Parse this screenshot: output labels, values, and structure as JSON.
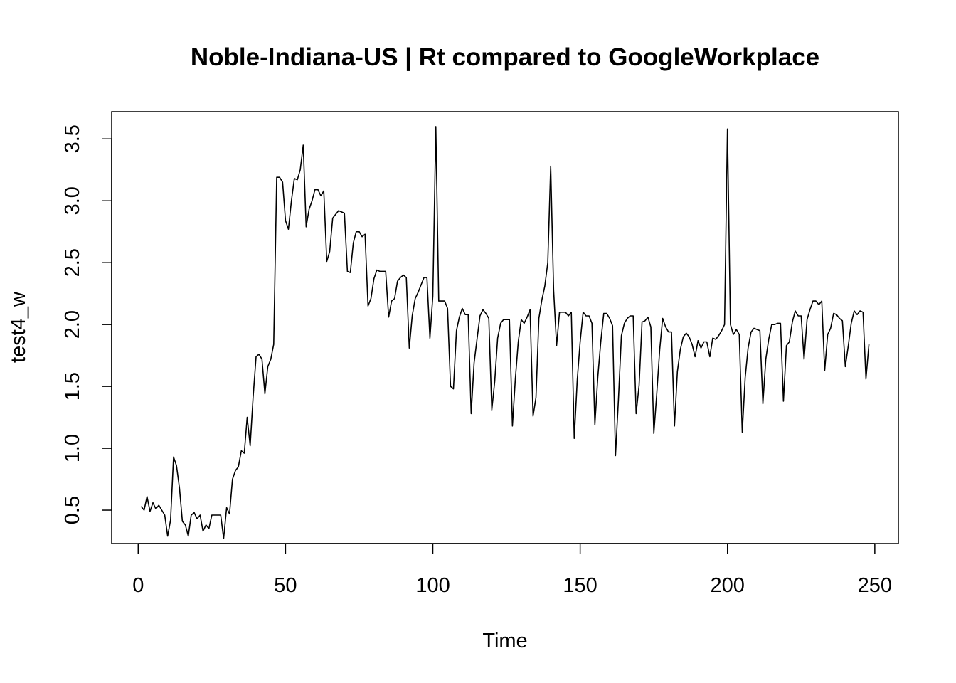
{
  "chart_data": {
    "type": "line",
    "title": "Noble-Indiana-US | Rt compared to GoogleWorkplace",
    "xlabel": "Time",
    "ylabel": "test4_w",
    "xlim": [
      -9,
      258
    ],
    "ylim": [
      0.23,
      3.72
    ],
    "xticks": [
      0,
      50,
      100,
      150,
      200,
      250
    ],
    "yticks": [
      0.5,
      1.0,
      1.5,
      2.0,
      2.5,
      3.0,
      3.5
    ],
    "xtick_labels": [
      "0",
      "50",
      "100",
      "150",
      "200",
      "250"
    ],
    "ytick_labels": [
      "0.5",
      "1.0",
      "1.5",
      "2.0",
      "2.5",
      "3.0",
      "3.5"
    ],
    "grid": false,
    "legend": "none",
    "line_color": "#000000",
    "series": [
      {
        "x": [
          1,
          2,
          3,
          4,
          5,
          6,
          7,
          8,
          9,
          10,
          11,
          12,
          13,
          14,
          15,
          16,
          17,
          18,
          19,
          20,
          21,
          22,
          23,
          24,
          25,
          26,
          27,
          28,
          29,
          30,
          31,
          32,
          33,
          34,
          35,
          36,
          37,
          38,
          39,
          40,
          41,
          42,
          43,
          44,
          45,
          46,
          47,
          48,
          49,
          50,
          51,
          52,
          53,
          54,
          55,
          56,
          57,
          58,
          59,
          60,
          61,
          62,
          63,
          64,
          65,
          66,
          67,
          68,
          69,
          70,
          71,
          72,
          73,
          74,
          75,
          76,
          77,
          78,
          79,
          80,
          81,
          82,
          83,
          84,
          85,
          86,
          87,
          88,
          89,
          90,
          91,
          92,
          93,
          94,
          95,
          96,
          97,
          98,
          99,
          100,
          101,
          102,
          103,
          104,
          105,
          106,
          107,
          108,
          109,
          110,
          111,
          112,
          113,
          114,
          115,
          116,
          117,
          118,
          119,
          120,
          121,
          122,
          123,
          124,
          125,
          126,
          127,
          128,
          129,
          130,
          131,
          132,
          133,
          134,
          135,
          136,
          137,
          138,
          139,
          140,
          141,
          142,
          143,
          144,
          145,
          146,
          147,
          148,
          149,
          150,
          151,
          152,
          153,
          154,
          155,
          156,
          157,
          158,
          159,
          160,
          161,
          162,
          163,
          164,
          165,
          166,
          167,
          168,
          169,
          170,
          171,
          172,
          173,
          174,
          175,
          176,
          177,
          178,
          179,
          180,
          181,
          182,
          183,
          184,
          185,
          186,
          187,
          188,
          189,
          190,
          191,
          192,
          193,
          194,
          195,
          196,
          197,
          198,
          199,
          200,
          201,
          202,
          203,
          204,
          205,
          206,
          207,
          208,
          209,
          210,
          211,
          212,
          213,
          214,
          215,
          216,
          217,
          218,
          219,
          220,
          221,
          222,
          223,
          224,
          225,
          226,
          227,
          228,
          229,
          230,
          231,
          232,
          233,
          234,
          235,
          236,
          237,
          238,
          239,
          240,
          241,
          242,
          243,
          244,
          245,
          246,
          247,
          248
        ],
        "values": [
          0.53,
          0.5,
          0.61,
          0.49,
          0.56,
          0.51,
          0.54,
          0.5,
          0.46,
          0.29,
          0.42,
          0.93,
          0.86,
          0.68,
          0.41,
          0.38,
          0.29,
          0.46,
          0.48,
          0.43,
          0.46,
          0.33,
          0.38,
          0.35,
          0.46,
          0.46,
          0.46,
          0.46,
          0.27,
          0.52,
          0.47,
          0.75,
          0.82,
          0.85,
          0.98,
          0.96,
          1.25,
          1.02,
          1.41,
          1.74,
          1.76,
          1.72,
          1.44,
          1.66,
          1.72,
          1.84,
          3.19,
          3.19,
          3.15,
          2.84,
          2.77,
          3.0,
          3.18,
          3.17,
          3.25,
          3.45,
          2.79,
          2.93,
          3.0,
          3.09,
          3.09,
          3.04,
          3.08,
          2.51,
          2.59,
          2.86,
          2.89,
          2.92,
          2.91,
          2.9,
          2.43,
          2.42,
          2.66,
          2.75,
          2.75,
          2.71,
          2.73,
          2.15,
          2.21,
          2.37,
          2.44,
          2.43,
          2.43,
          2.43,
          2.06,
          2.19,
          2.21,
          2.35,
          2.38,
          2.4,
          2.38,
          1.81,
          2.07,
          2.21,
          2.26,
          2.32,
          2.38,
          2.38,
          1.89,
          2.23,
          3.6,
          2.19,
          2.19,
          2.19,
          2.13,
          1.5,
          1.48,
          1.95,
          2.06,
          2.13,
          2.08,
          2.08,
          1.28,
          1.69,
          1.88,
          2.07,
          2.12,
          2.09,
          2.05,
          1.31,
          1.54,
          1.89,
          2.01,
          2.04,
          2.04,
          2.04,
          1.18,
          1.56,
          1.86,
          2.04,
          2.01,
          2.06,
          2.12,
          1.26,
          1.41,
          2.05,
          2.2,
          2.31,
          2.5,
          3.28,
          2.28,
          1.83,
          2.1,
          2.1,
          2.1,
          2.07,
          2.1,
          1.08,
          1.55,
          1.86,
          2.1,
          2.07,
          2.07,
          2.01,
          1.19,
          1.58,
          1.86,
          2.09,
          2.09,
          2.05,
          1.99,
          0.94,
          1.4,
          1.91,
          2.01,
          2.05,
          2.07,
          2.07,
          1.28,
          1.51,
          2.02,
          2.03,
          2.06,
          1.98,
          1.12,
          1.44,
          1.8,
          2.05,
          1.98,
          1.94,
          1.94,
          1.18,
          1.62,
          1.8,
          1.9,
          1.93,
          1.9,
          1.84,
          1.74,
          1.87,
          1.81,
          1.86,
          1.86,
          1.74,
          1.89,
          1.88,
          1.91,
          1.95,
          2.0,
          3.58,
          2.0,
          1.92,
          1.96,
          1.92,
          1.13,
          1.57,
          1.81,
          1.94,
          1.97,
          1.96,
          1.95,
          1.36,
          1.72,
          1.88,
          2.0,
          2.0,
          2.01,
          2.01,
          1.38,
          1.83,
          1.86,
          2.02,
          2.11,
          2.07,
          2.07,
          1.72,
          2.04,
          2.12,
          2.19,
          2.19,
          2.16,
          2.19,
          1.63,
          1.92,
          1.97,
          2.09,
          2.08,
          2.05,
          2.03,
          1.66,
          1.83,
          2.01,
          2.11,
          2.08,
          2.11,
          2.1,
          1.56,
          1.84
        ]
      }
    ]
  }
}
